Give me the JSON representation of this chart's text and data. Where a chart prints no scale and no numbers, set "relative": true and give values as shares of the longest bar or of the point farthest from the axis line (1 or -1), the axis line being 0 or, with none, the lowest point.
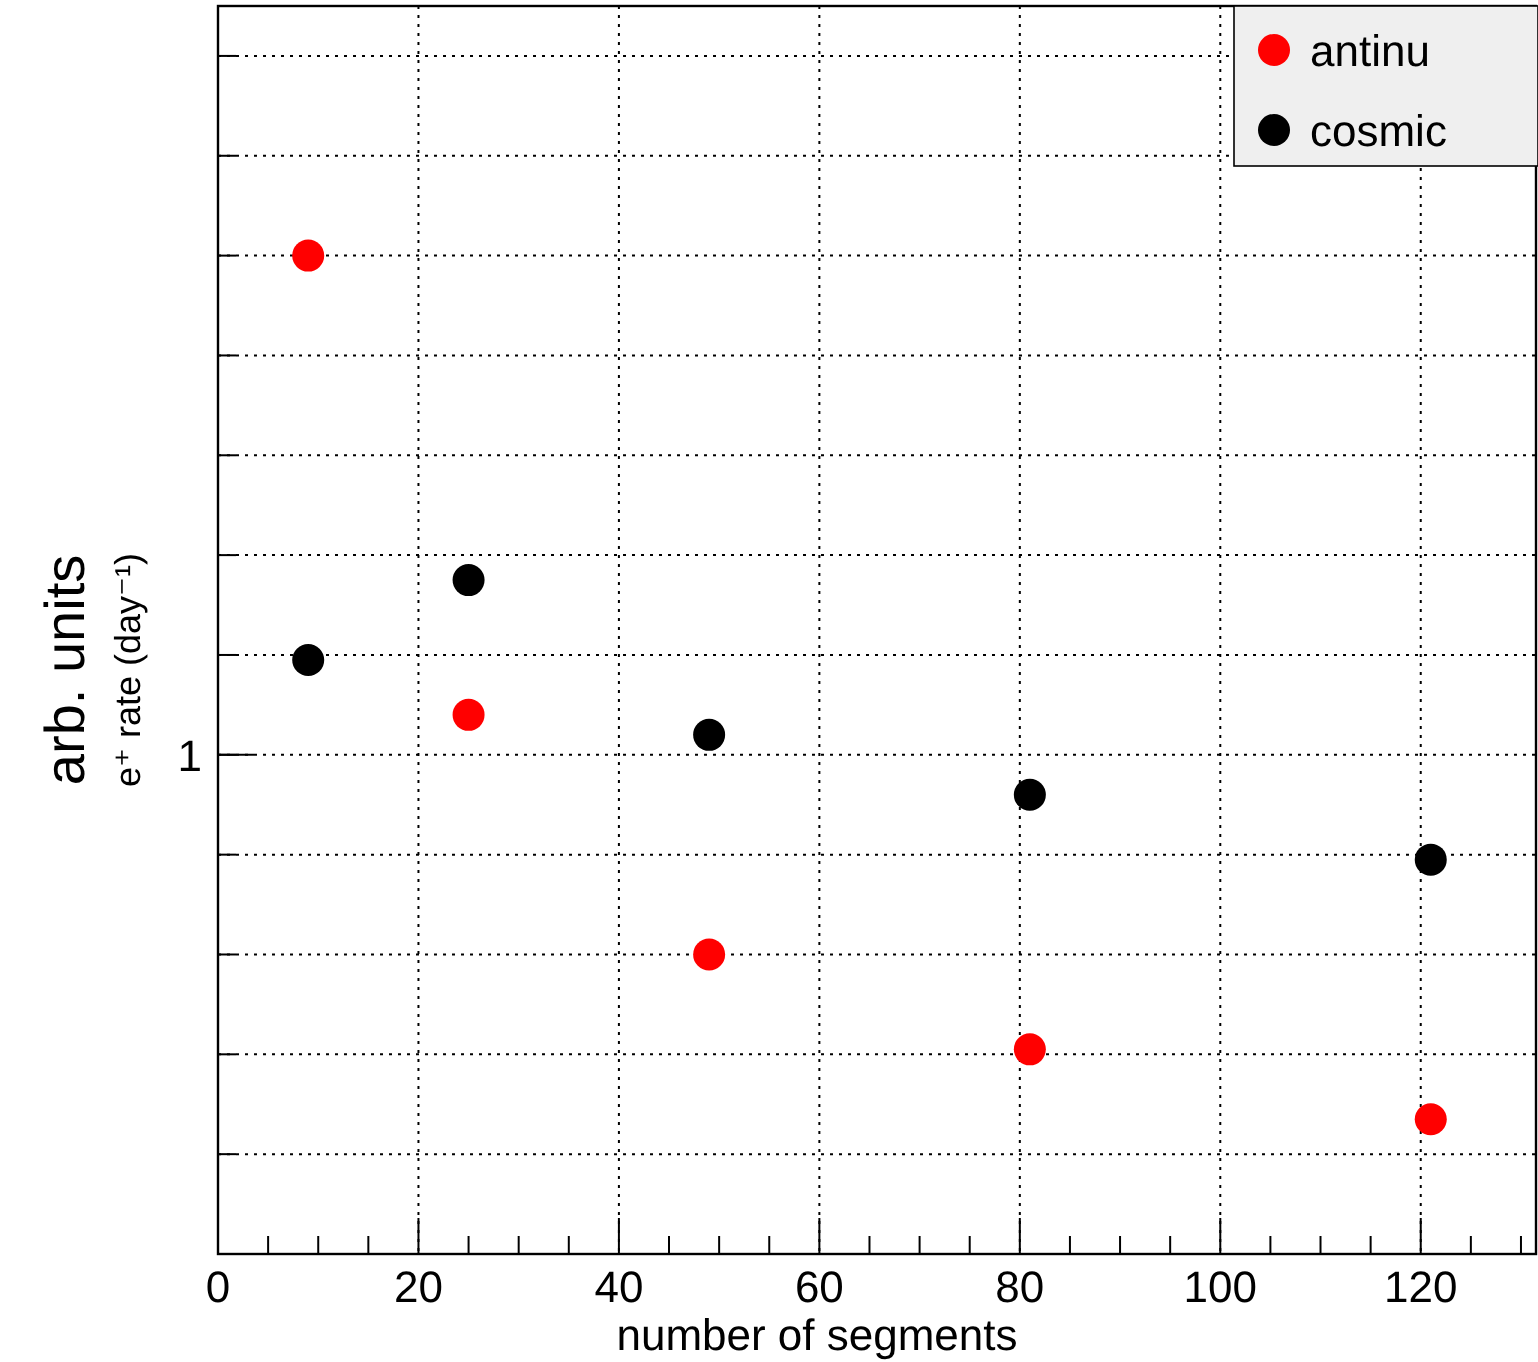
{
  "chart_data": {
    "type": "scatter",
    "xlabel": "number of segments",
    "ylabel": "arb. units",
    "annotations": [
      "e⁺ rate (day⁻¹)",
      "1"
    ],
    "relative": true,
    "series": [
      {
        "name": "antinu",
        "color": "#ff0000",
        "x": [
          9,
          25,
          49,
          81,
          121
        ],
        "values": [
          1,
          0.54,
          0.3,
          0.205,
          0.135
        ]
      },
      {
        "name": "cosmic",
        "color": "#000000",
        "x": [
          9,
          25,
          49,
          81,
          121
        ],
        "values": [
          0.595,
          0.675,
          0.52,
          0.46,
          0.395
        ]
      }
    ],
    "xlim": [
      0,
      131.5
    ],
    "xticks": [
      0,
      20,
      40,
      60,
      80,
      100,
      120
    ],
    "grid": true,
    "legend": "top right",
    "marker": "circle"
  }
}
